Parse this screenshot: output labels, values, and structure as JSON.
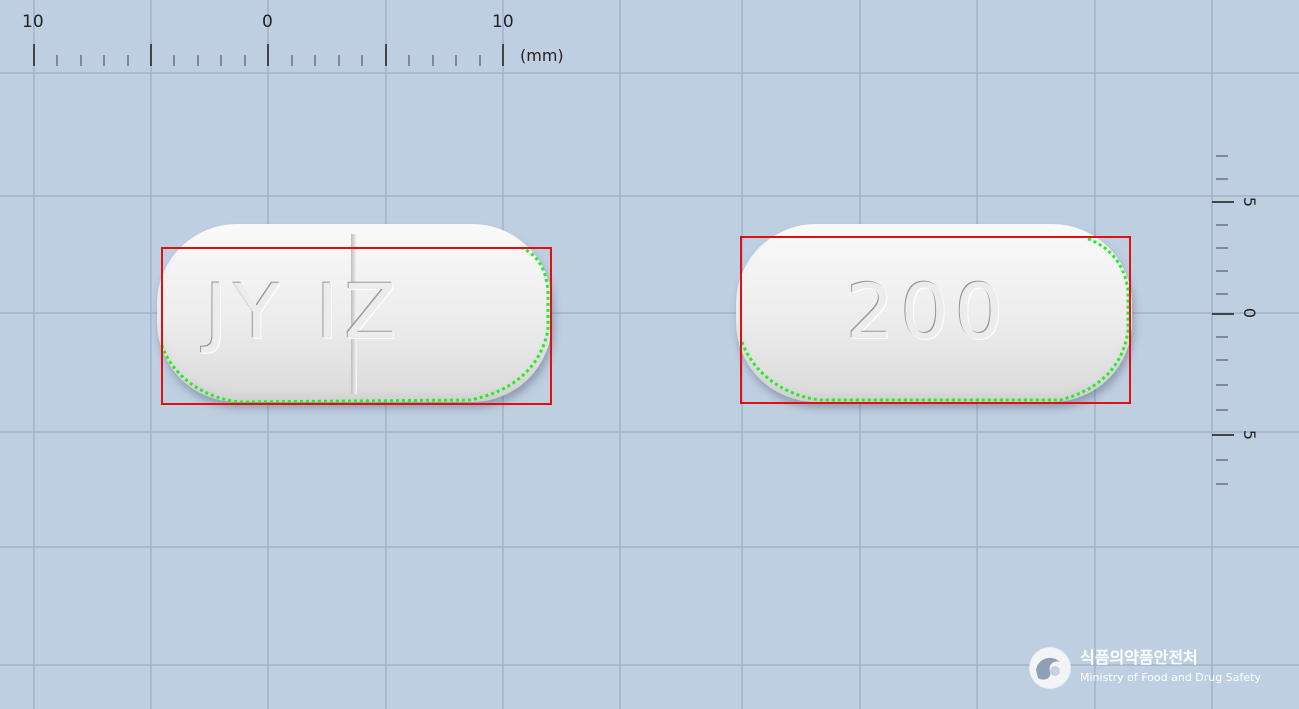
{
  "ruler_top": {
    "labels": [
      "10",
      "0",
      "10"
    ],
    "unit": "(mm)"
  },
  "ruler_right": {
    "labels": [
      "5",
      "0",
      "5"
    ]
  },
  "pills": [
    {
      "imprint": "JY IZ",
      "score_line": true
    },
    {
      "imprint": "200",
      "score_line": false
    }
  ],
  "logo": {
    "korean": "식품의약품안전처",
    "english": "Ministry of Food and Drug Safety"
  },
  "colors": {
    "background": "#bfcfe2",
    "grid": "#9fb0c6",
    "bbox": "#e01010",
    "contour": "#22ee22"
  }
}
